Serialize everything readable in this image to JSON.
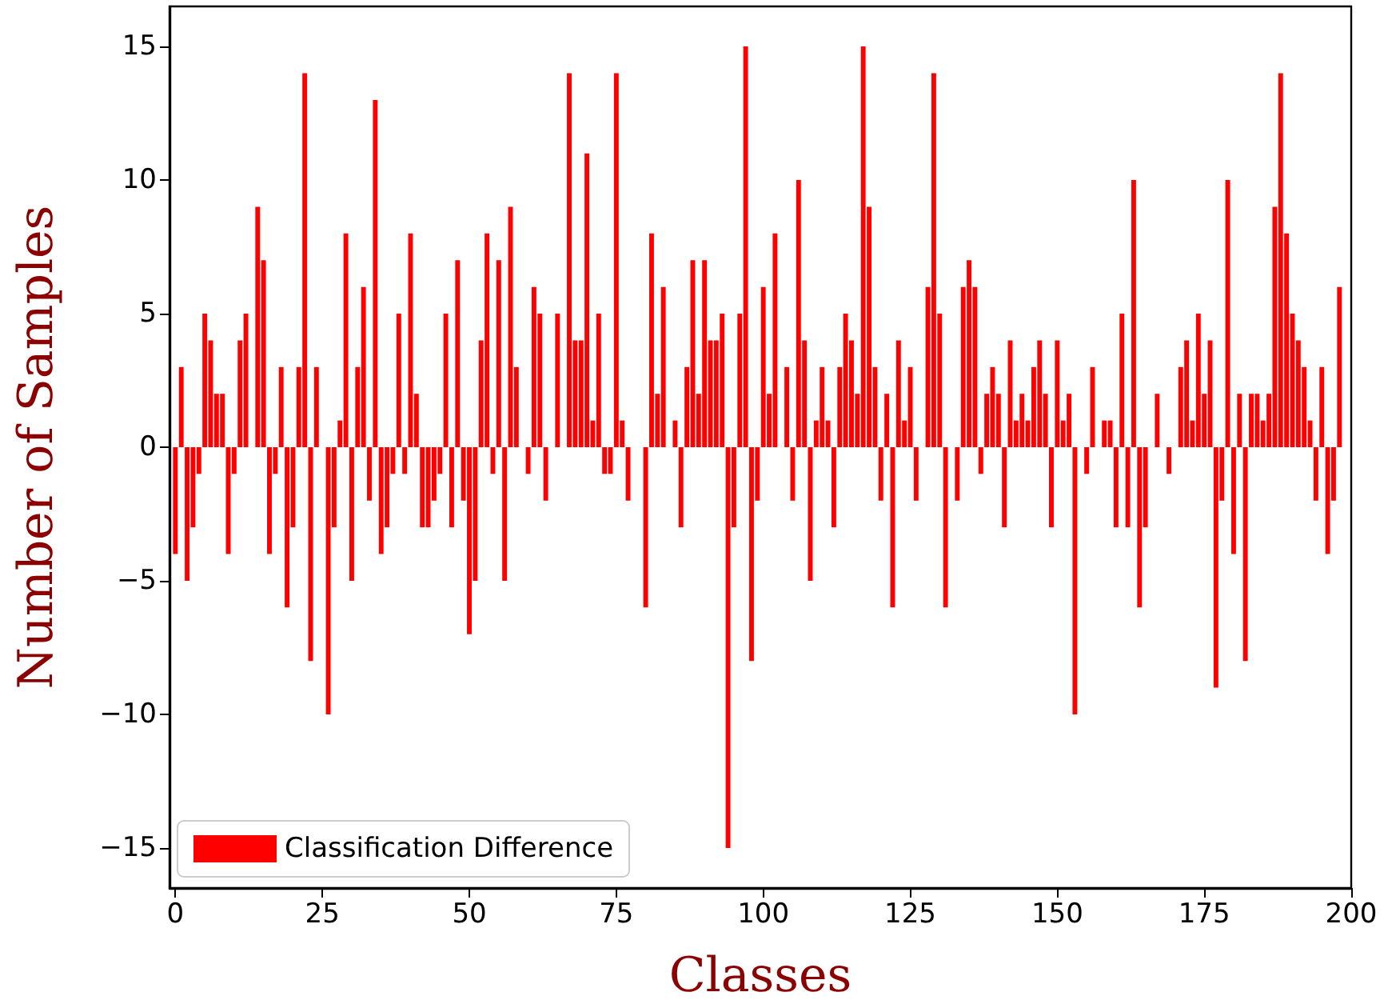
{
  "chart_data": {
    "type": "bar",
    "xlabel": "Classes",
    "ylabel": "Number of Samples",
    "x": [
      0,
      1,
      2,
      3,
      4,
      5,
      6,
      7,
      8,
      9,
      10,
      11,
      12,
      13,
      14,
      15,
      16,
      17,
      18,
      19,
      20,
      21,
      22,
      23,
      24,
      25,
      26,
      27,
      28,
      29,
      30,
      31,
      32,
      33,
      34,
      35,
      36,
      37,
      38,
      39,
      40,
      41,
      42,
      43,
      44,
      45,
      46,
      47,
      48,
      49,
      50,
      51,
      52,
      53,
      54,
      55,
      56,
      57,
      58,
      59,
      60,
      61,
      62,
      63,
      64,
      65,
      66,
      67,
      68,
      69,
      70,
      71,
      72,
      73,
      74,
      75,
      76,
      77,
      78,
      79,
      80,
      81,
      82,
      83,
      84,
      85,
      86,
      87,
      88,
      89,
      90,
      91,
      92,
      93,
      94,
      95,
      96,
      97,
      98,
      99,
      100,
      101,
      102,
      103,
      104,
      105,
      106,
      107,
      108,
      109,
      110,
      111,
      112,
      113,
      114,
      115,
      116,
      117,
      118,
      119,
      120,
      121,
      122,
      123,
      124,
      125,
      126,
      127,
      128,
      129,
      130,
      131,
      132,
      133,
      134,
      135,
      136,
      137,
      138,
      139,
      140,
      141,
      142,
      143,
      144,
      145,
      146,
      147,
      148,
      149,
      150,
      151,
      152,
      153,
      154,
      155,
      156,
      157,
      158,
      159,
      160,
      161,
      162,
      163,
      164,
      165,
      166,
      167,
      168,
      169,
      170,
      171,
      172,
      173,
      174,
      175,
      176,
      177,
      178,
      179,
      180,
      181,
      182,
      183,
      184,
      185,
      186,
      187,
      188,
      189,
      190,
      191,
      192,
      193,
      194,
      195,
      196,
      197,
      198,
      199
    ],
    "series": [
      {
        "name": "Classification Difference",
        "color": "#ff0000",
        "values": [
          -4,
          3,
          -5,
          -3,
          -1,
          5,
          4,
          2,
          2,
          -4,
          -1,
          4,
          5,
          0,
          9,
          7,
          -4,
          -1,
          3,
          -6,
          -3,
          3,
          14,
          -8,
          3,
          0,
          -10,
          -3,
          1,
          8,
          -5,
          3,
          6,
          -2,
          13,
          -4,
          -3,
          -1,
          5,
          -1,
          8,
          2,
          -3,
          -3,
          -2,
          -1,
          5,
          -3,
          7,
          -2,
          -7,
          -5,
          4,
          8,
          -1,
          7,
          -5,
          9,
          3,
          0,
          -1,
          6,
          5,
          -2,
          0,
          5,
          0,
          14,
          4,
          4,
          11,
          1,
          5,
          -1,
          -1,
          14,
          1,
          -2,
          0,
          0,
          -6,
          8,
          2,
          6,
          0,
          1,
          -3,
          3,
          7,
          2,
          7,
          4,
          4,
          5,
          -15,
          -3,
          5,
          15,
          -8,
          -2,
          6,
          2,
          8,
          0,
          3,
          -2,
          10,
          4,
          -5,
          1,
          3,
          1,
          -3,
          3,
          5,
          4,
          2,
          15,
          9,
          3,
          -2,
          2,
          -6,
          4,
          1,
          3,
          -2,
          0,
          6,
          14,
          5,
          -6,
          0,
          -2,
          6,
          7,
          6,
          -1,
          2,
          3,
          2,
          -3,
          4,
          1,
          2,
          1,
          3,
          4,
          2,
          -3,
          4,
          1,
          2,
          -10,
          0,
          -1,
          3,
          0,
          1,
          1,
          -3,
          5,
          -3,
          10,
          -6,
          -3,
          0,
          2,
          0,
          -1,
          0,
          3,
          4,
          1,
          5,
          2,
          4,
          -9,
          -2,
          10,
          -4,
          2,
          -8,
          2,
          2,
          1,
          2,
          9,
          14,
          8,
          5,
          4,
          3,
          1,
          -2,
          3,
          -4,
          -2,
          6,
          0
        ]
      }
    ],
    "xlim": [
      -1,
      200
    ],
    "xticks": [
      0,
      25,
      50,
      75,
      100,
      125,
      150,
      175,
      200
    ],
    "ylim": [
      -16.5,
      16.5
    ],
    "yticks": [
      -15,
      -10,
      -5,
      0,
      5,
      10,
      15
    ],
    "grid": false,
    "legend": "bottom left"
  }
}
